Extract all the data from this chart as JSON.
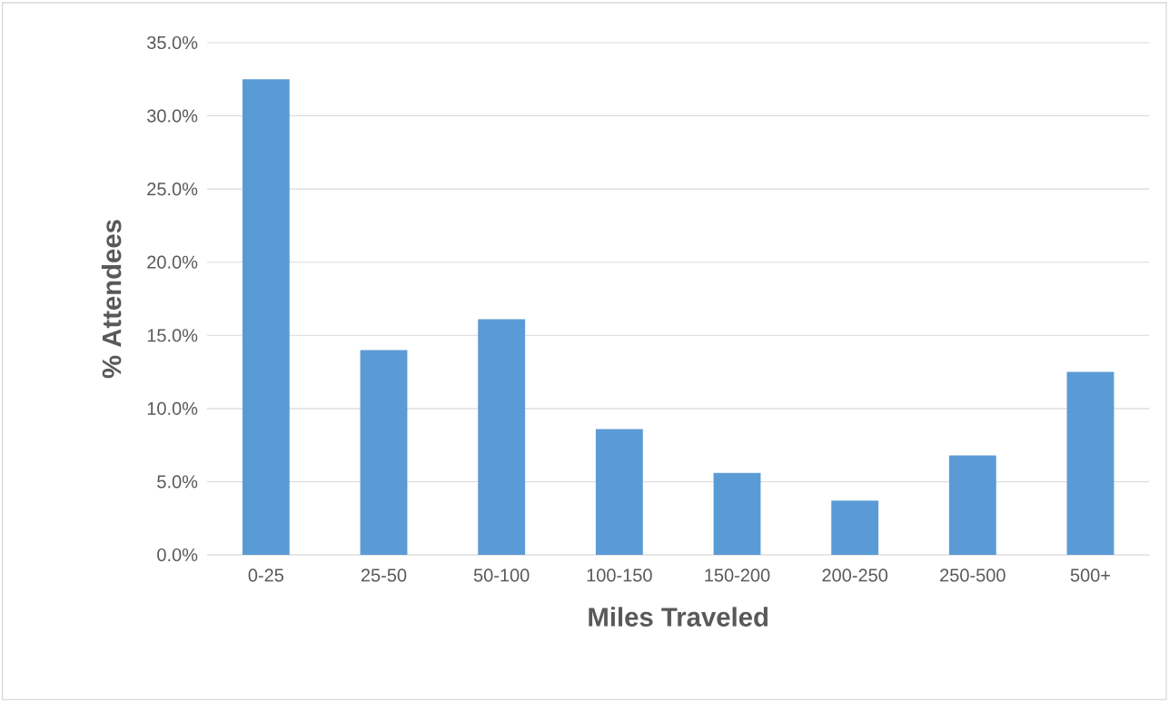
{
  "chart_data": {
    "type": "bar",
    "xlabel": "Miles Traveled",
    "ylabel": "% Attendees",
    "categories": [
      "0-25",
      "25-50",
      "50-100",
      "100-150",
      "150-200",
      "200-250",
      "250-500",
      "500+"
    ],
    "values": [
      32.5,
      14.0,
      16.1,
      8.6,
      5.6,
      3.7,
      6.8,
      12.5
    ],
    "color": "#5b9bd5",
    "ylim": [
      0,
      35
    ],
    "yticks": [
      {
        "value": 0,
        "label": "0.0%"
      },
      {
        "value": 5,
        "label": "5.0%"
      },
      {
        "value": 10,
        "label": "10.0%"
      },
      {
        "value": 15,
        "label": "15.0%"
      },
      {
        "value": 20,
        "label": "20.0%"
      },
      {
        "value": 25,
        "label": "25.0%"
      },
      {
        "value": 30,
        "label": "30.0%"
      },
      {
        "value": 35,
        "label": "35.0%"
      }
    ],
    "grid": "y"
  }
}
